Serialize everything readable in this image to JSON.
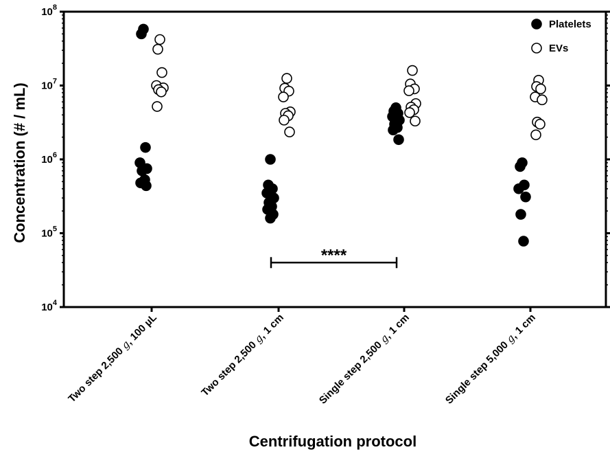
{
  "chart_data": {
    "type": "scatter",
    "xlabel": "Centrifugation protocol",
    "ylabel": "Concentration (# / mL)",
    "y_scale": "log",
    "ylim": [
      10000,
      100000000
    ],
    "y_ticks": [
      {
        "value": 10000,
        "base": "10",
        "exp": "4"
      },
      {
        "value": 100000,
        "base": "10",
        "exp": "5"
      },
      {
        "value": 1000000,
        "base": "10",
        "exp": "6"
      },
      {
        "value": 10000000,
        "base": "10",
        "exp": "7"
      },
      {
        "value": 100000000,
        "base": "10",
        "exp": "8"
      }
    ],
    "categories": [
      {
        "pre": "Two step 2,500 ",
        "g": "g",
        "post": ", 100 µL"
      },
      {
        "pre": "Two step 2,500 ",
        "g": "g",
        "post": ", 1 cm"
      },
      {
        "pre": "Single step 2,500 ",
        "g": "g",
        "post": ", 1 cm"
      },
      {
        "pre": "Single step 5,000 ",
        "g": "g",
        "post": ", 1 cm"
      }
    ],
    "series": [
      {
        "name": "Platelets",
        "marker": "filled",
        "color": "#000000",
        "values": [
          [
            58000000,
            50000000,
            1450000,
            900000,
            750000,
            700000,
            530000,
            480000,
            440000
          ],
          [
            1000000,
            450000,
            400000,
            350000,
            300000,
            260000,
            230000,
            210000,
            180000,
            160000
          ],
          [
            5000000,
            4500000,
            4200000,
            3800000,
            3400000,
            3000000,
            2700000,
            2500000,
            1850000
          ],
          [
            900000,
            800000,
            450000,
            400000,
            310000,
            180000,
            78000
          ]
        ]
      },
      {
        "name": "EVs",
        "marker": "open",
        "color": "#000000",
        "values": [
          [
            42000000,
            31000000,
            15000000,
            10000000,
            9300000,
            8800000,
            8200000,
            5200000
          ],
          [
            12500000,
            9200000,
            8400000,
            7000000,
            4400000,
            4200000,
            3900000,
            3400000,
            2350000
          ],
          [
            16000000,
            10500000,
            9000000,
            8500000,
            5700000,
            5100000,
            4700000,
            4300000,
            3300000
          ],
          [
            11800000,
            9700000,
            9000000,
            7000000,
            6400000,
            3200000,
            3000000,
            2150000
          ]
        ]
      }
    ],
    "significance": {
      "from_category": 1,
      "to_category": 2,
      "label": "****",
      "y_value": 40000
    },
    "legend": {
      "position": "top-right"
    }
  }
}
